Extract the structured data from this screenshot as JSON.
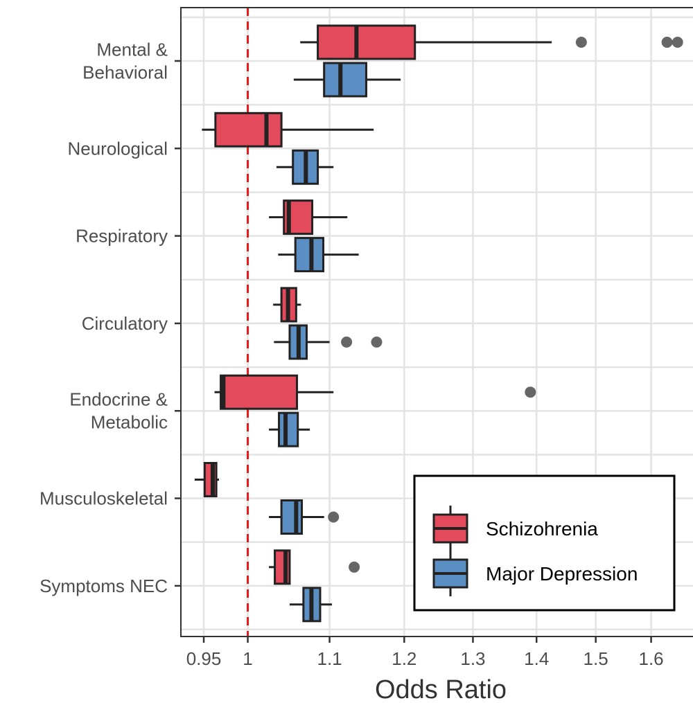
{
  "chart_data": {
    "type": "boxplot",
    "orientation": "horizontal",
    "xlabel": "Odds Ratio",
    "ylabel": "",
    "x_scale": "log",
    "xlim": [
      0.925,
      1.68
    ],
    "x_ticks": [
      0.95,
      1,
      1.1,
      1.2,
      1.3,
      1.4,
      1.5,
      1.6
    ],
    "x_tick_labels": [
      "0.95",
      "1",
      "1.1",
      "1.2",
      "1.3",
      "1.4",
      "1.5",
      "1.6"
    ],
    "reference_line": {
      "x": 1,
      "style": "dashed",
      "color": "#e41a1c"
    },
    "grid": true,
    "legend_position": "bottom-right",
    "categories": [
      [
        "Mental &",
        "Behavioral"
      ],
      [
        "Neurological"
      ],
      [
        "Respiratory"
      ],
      [
        "Circulatory"
      ],
      [
        "Endocrine &",
        "Metabolic"
      ],
      [
        "Musculoskeletal"
      ],
      [
        "Symptoms NEC"
      ]
    ],
    "series": [
      {
        "name": "Schizohrenia",
        "color": "#e34a5c",
        "boxes": [
          {
            "whisker_low": 1.063,
            "q1": 1.085,
            "median": 1.135,
            "q3": 1.215,
            "whisker_high": 1.425,
            "outliers": [
              1.475,
              1.63,
              1.65
            ]
          },
          {
            "whisker_low": 0.948,
            "q1": 0.963,
            "median": 1.022,
            "q3": 1.04,
            "whisker_high": 1.158,
            "outliers": []
          },
          {
            "whisker_low": 1.025,
            "q1": 1.043,
            "median": 1.049,
            "q3": 1.078,
            "whisker_high": 1.123,
            "outliers": []
          },
          {
            "whisker_low": 1.03,
            "q1": 1.04,
            "median": 1.048,
            "q3": 1.058,
            "whisker_high": 1.064,
            "outliers": []
          },
          {
            "whisker_low": 0.962,
            "q1": 0.969,
            "median": 0.972,
            "q3": 1.059,
            "whisker_high": 1.105,
            "outliers": [
              1.39
            ]
          },
          {
            "whisker_low": 0.94,
            "q1": 0.951,
            "median": 0.96,
            "q3": 0.964,
            "whisker_high": 0.967,
            "outliers": []
          },
          {
            "whisker_low": 1.025,
            "q1": 1.032,
            "median": 1.045,
            "q3": 1.05,
            "whisker_high": 1.05,
            "outliers": [
              1.132
            ]
          }
        ]
      },
      {
        "name": "Major Depression",
        "color": "#5b8ec3",
        "boxes": [
          {
            "whisker_low": 1.055,
            "q1": 1.093,
            "median": 1.114,
            "q3": 1.148,
            "whisker_high": 1.195,
            "outliers": []
          },
          {
            "whisker_low": 1.034,
            "q1": 1.054,
            "median": 1.07,
            "q3": 1.085,
            "whisker_high": 1.105,
            "outliers": []
          },
          {
            "whisker_low": 1.036,
            "q1": 1.057,
            "median": 1.077,
            "q3": 1.092,
            "whisker_high": 1.138,
            "outliers": []
          },
          {
            "whisker_low": 1.031,
            "q1": 1.05,
            "median": 1.061,
            "q3": 1.071,
            "whisker_high": 1.1,
            "outliers": [
              1.122,
              1.162
            ]
          },
          {
            "whisker_low": 1.025,
            "q1": 1.037,
            "median": 1.045,
            "q3": 1.06,
            "whisker_high": 1.075,
            "outliers": []
          },
          {
            "whisker_low": 1.025,
            "q1": 1.04,
            "median": 1.058,
            "q3": 1.065,
            "whisker_high": 1.093,
            "outliers": [
              1.105
            ]
          },
          {
            "whisker_low": 1.05,
            "q1": 1.067,
            "median": 1.077,
            "q3": 1.088,
            "whisker_high": 1.103,
            "outliers": []
          }
        ]
      }
    ]
  }
}
